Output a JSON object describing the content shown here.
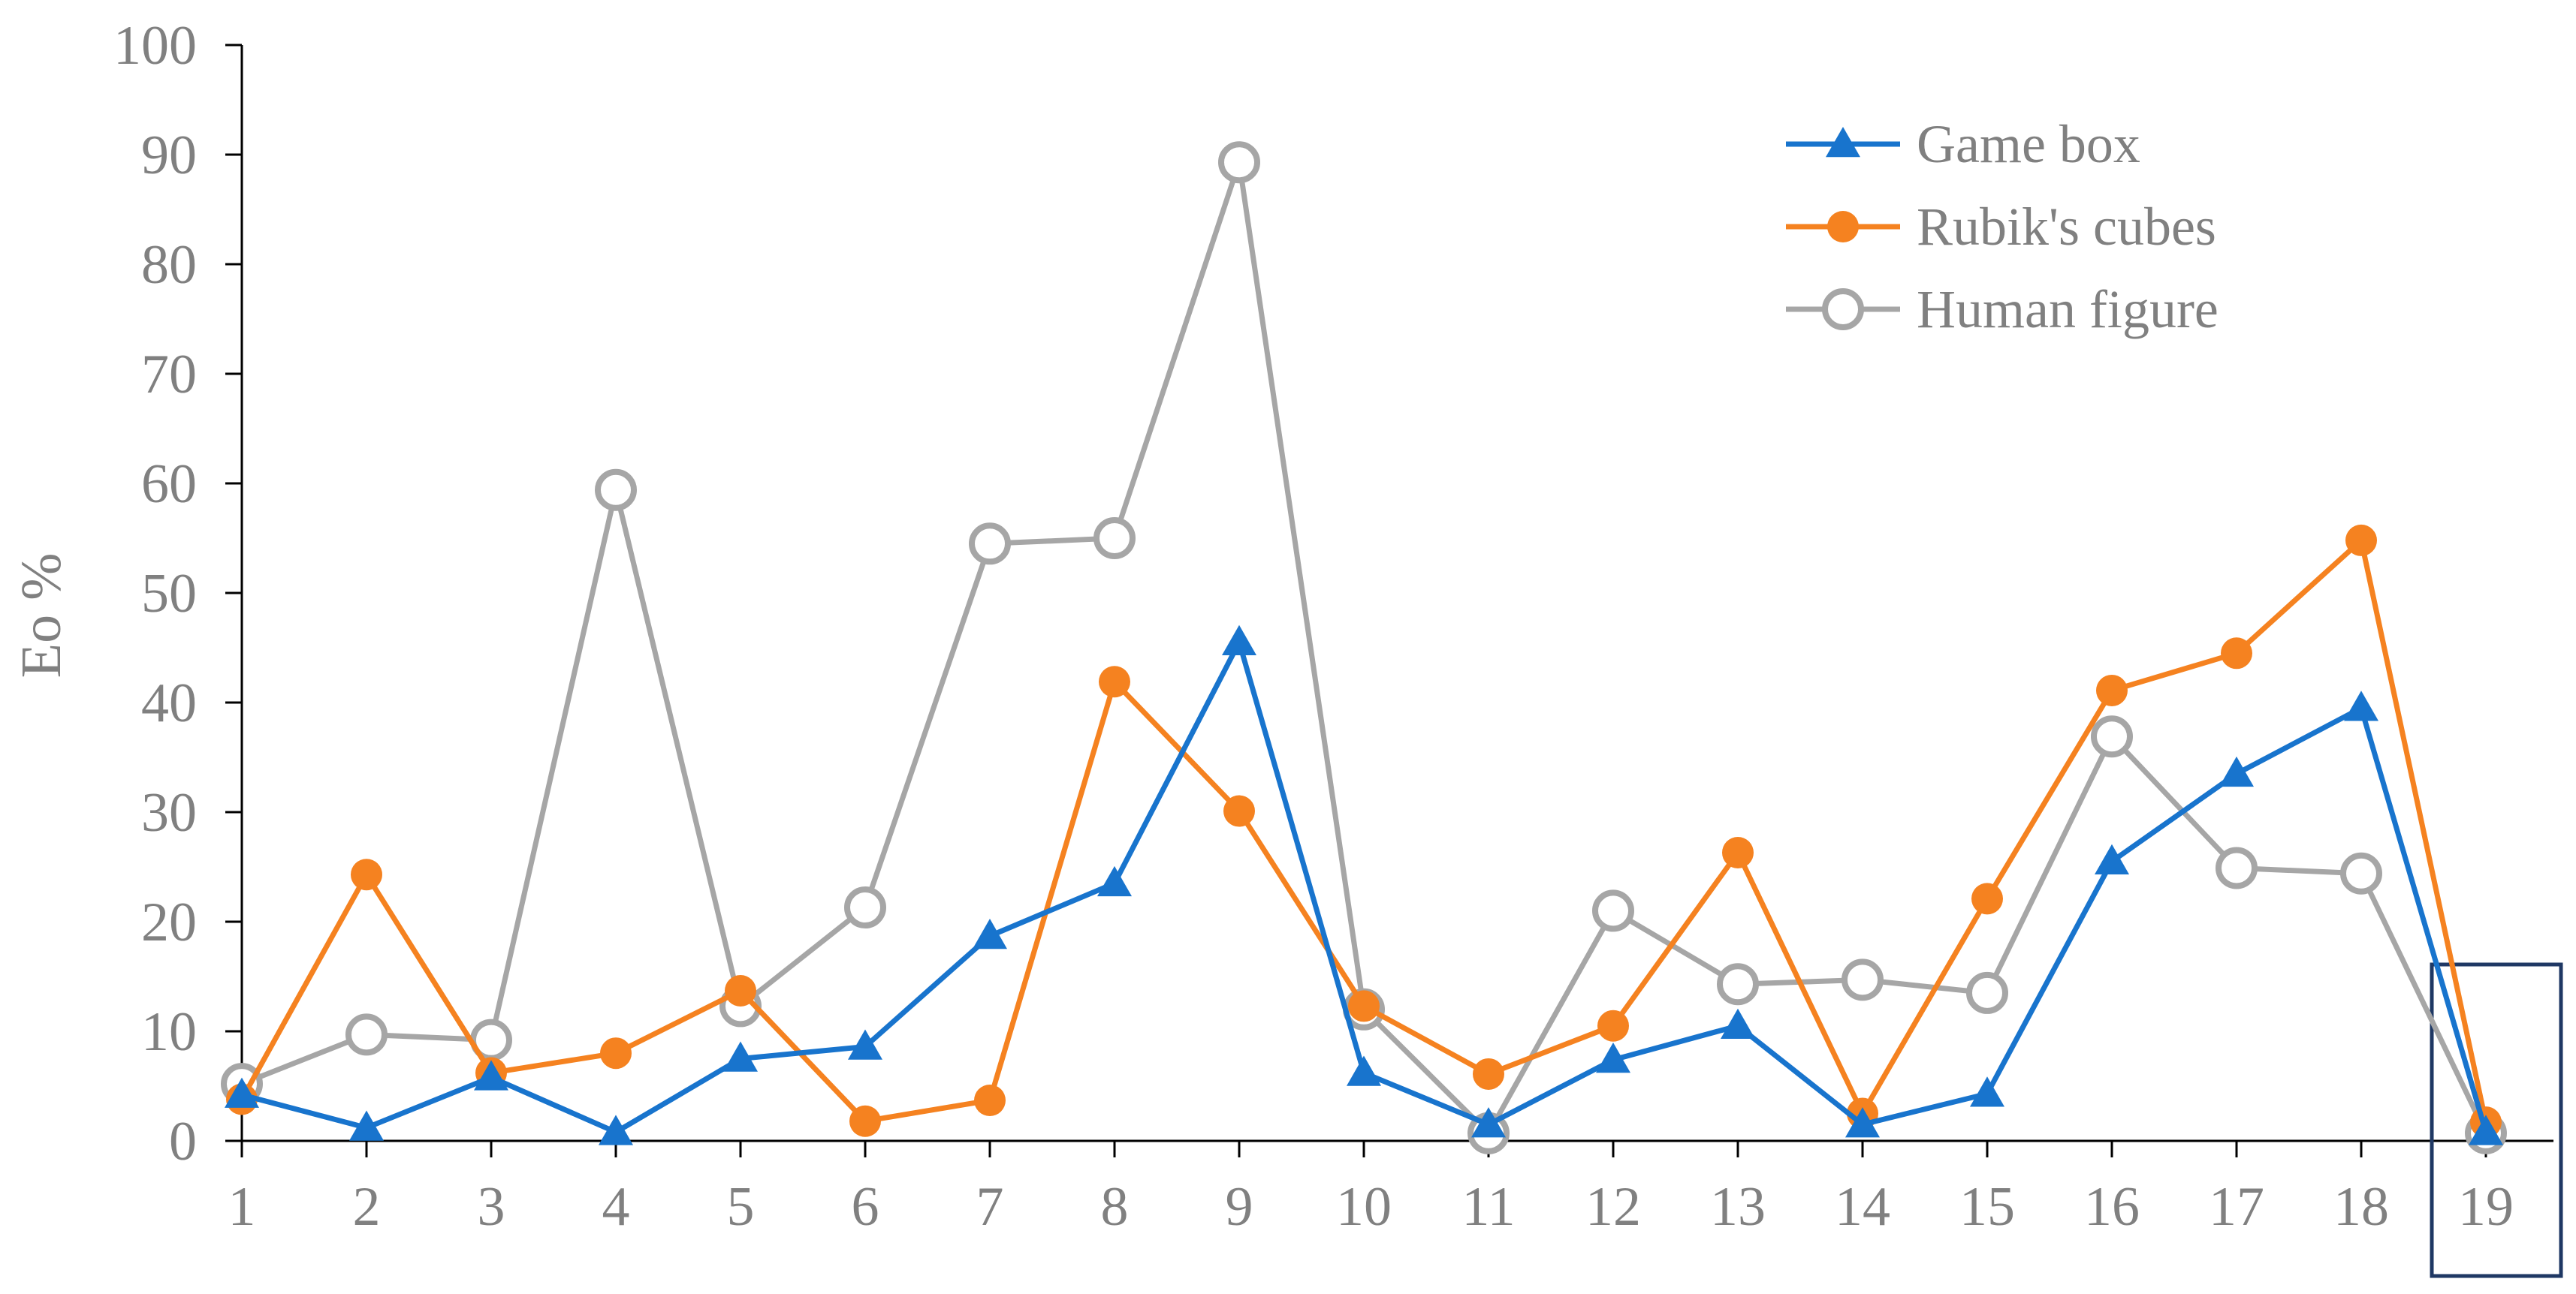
{
  "chart_data": {
    "type": "line",
    "title": "",
    "xlabel": "",
    "ylabel": "Eo %",
    "ylim": [
      0,
      100
    ],
    "yticks": [
      0,
      10,
      20,
      30,
      40,
      50,
      60,
      70,
      80,
      90,
      100
    ],
    "categories": [
      "1",
      "2",
      "3",
      "4",
      "5",
      "6",
      "7",
      "8",
      "9",
      "10",
      "11",
      "12",
      "13",
      "14",
      "15",
      "16",
      "17",
      "18",
      "19"
    ],
    "grid": false,
    "legend_position": "top-right",
    "highlight": {
      "category": "19",
      "color": "#1F3864"
    },
    "series": [
      {
        "name": "Game box",
        "color": "#1874CD",
        "marker": "triangle",
        "values": [
          4.2,
          1.2,
          5.8,
          0.8,
          7.5,
          8.6,
          18.7,
          23.5,
          45.5,
          6.2,
          1.5,
          7.4,
          10.5,
          1.5,
          4.3,
          25.5,
          33.5,
          39.5,
          0.8
        ]
      },
      {
        "name": "Rubik's cubes",
        "color": "#F58220",
        "marker": "filled-circle",
        "values": [
          3.8,
          24.3,
          6.2,
          8.0,
          13.7,
          1.8,
          3.7,
          41.9,
          30.1,
          12.3,
          6.1,
          10.5,
          26.3,
          2.5,
          22.1,
          41.1,
          44.5,
          54.8,
          1.7
        ]
      },
      {
        "name": "Human figure",
        "color": "#A6A6A6",
        "marker": "open-circle",
        "values": [
          5.2,
          9.7,
          9.2,
          59.4,
          12.3,
          21.3,
          54.5,
          55.0,
          89.3,
          12.0,
          0.7,
          21.0,
          14.3,
          14.7,
          13.5,
          36.9,
          24.9,
          24.4,
          0.7
        ]
      }
    ]
  }
}
